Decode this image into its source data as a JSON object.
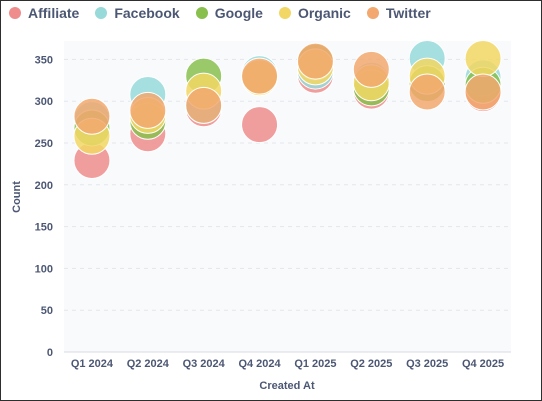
{
  "chart_data": {
    "type": "scatter",
    "xlabel": "Created At",
    "ylabel": "Count",
    "categories": [
      "Q1 2024",
      "Q2 2024",
      "Q3 2024",
      "Q4 2024",
      "Q1 2025",
      "Q2 2025",
      "Q3 2025",
      "Q4 2025"
    ],
    "yticks": [
      0,
      50,
      100,
      150,
      200,
      250,
      300,
      350
    ],
    "ylim": [
      0,
      372
    ],
    "grid": true,
    "legend_position": "top-left",
    "series": [
      {
        "name": "Affiliate",
        "color": "#ef8c8c",
        "values": [
          229,
          261,
          291,
          272,
          331,
          312,
          320,
          309
        ]
      },
      {
        "name": "Facebook",
        "color": "#98d9d9",
        "values": [
          278,
          308,
          295,
          333,
          336,
          325,
          351,
          328
        ]
      },
      {
        "name": "Google",
        "color": "#88bf4d",
        "values": [
          268,
          276,
          330,
          329,
          347,
          316,
          321,
          319
        ]
      },
      {
        "name": "Organic",
        "color": "#f2d764",
        "values": [
          258,
          283,
          312,
          328,
          341,
          322,
          330,
          351
        ]
      },
      {
        "name": "Twitter",
        "color": "#f2a86f",
        "values": [
          282,
          289,
          295,
          330,
          348,
          338,
          311,
          311
        ]
      }
    ]
  }
}
